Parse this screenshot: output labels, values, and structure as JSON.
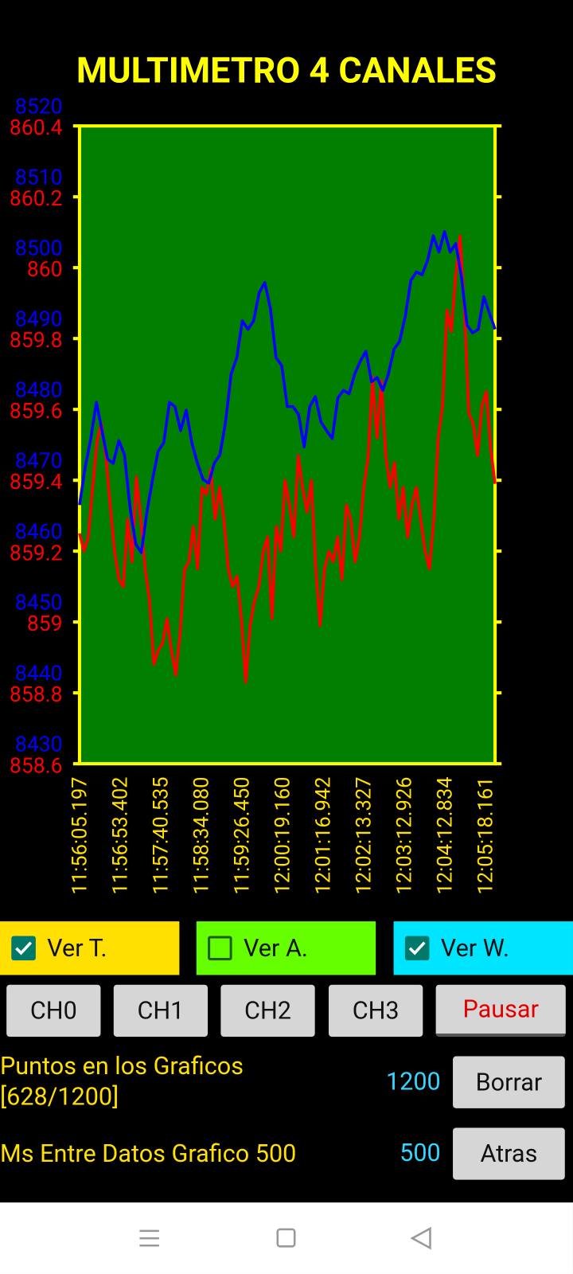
{
  "header": {
    "title": "MULTIMETRO 4 CANALES"
  },
  "chart_data": {
    "type": "line",
    "x_tick_labels": [
      "11:56:05.197",
      "11:56:53.402",
      "11:57:40.535",
      "11:58:34.080",
      "11:59:26.450",
      "12:00:19.160",
      "12:01:16.942",
      "12:02:13.327",
      "12:03:12.926",
      "12:04:12.834",
      "12:05:18.161"
    ],
    "ylim": [
      8430,
      8520
    ],
    "yticks": [
      8430,
      8440,
      8450,
      8460,
      8470,
      8480,
      8490,
      8500,
      8510,
      8520
    ],
    "y2lim": [
      858.6,
      860.4
    ],
    "y2ticks": [
      858.6,
      858.8,
      859,
      859.2,
      859.4,
      859.6,
      859.8,
      860,
      860.2,
      860.4
    ],
    "background": "#007f00",
    "border_color": "#ffff00",
    "series": [
      {
        "color": "#0000ff",
        "values": [
          8466.5,
          8471.8,
          8475.9,
          8481.0,
          8477.0,
          8473.0,
          8472.4,
          8475.6,
          8473.6,
          8466.1,
          8461.0,
          8459.8,
          8465.5,
          8470.1,
          8474.1,
          8475.3,
          8481.0,
          8480.4,
          8477.0,
          8479.9,
          8475.3,
          8472.4,
          8470.1,
          8469.6,
          8472.4,
          8473.6,
          8478.2,
          8485.0,
          8487.3,
          8492.5,
          8491.3,
          8492.5,
          8496.5,
          8497.9,
          8494.2,
          8487.3,
          8486.2,
          8480.4,
          8480.4,
          8479.3,
          8474.7,
          8480.4,
          8481.8,
          8478.2,
          8477.0,
          8475.9,
          8481.6,
          8482.7,
          8482.2,
          8485.0,
          8486.8,
          8488.2,
          8483.9,
          8484.5,
          8482.7,
          8485.0,
          8488.5,
          8489.6,
          8493.1,
          8498.2,
          8499.4,
          8499.0,
          8501.1,
          8504.5,
          8502.2,
          8505.1,
          8502.2,
          8503.4,
          8498.8,
          8491.9,
          8490.8,
          8491.3,
          8495.9,
          8493.6,
          8491.3
        ]
      },
      {
        "color": "#ff0000",
        "axis": "y2",
        "values": [
          859.25,
          859.2,
          859.24,
          859.38,
          859.51,
          859.56,
          859.47,
          859.33,
          859.2,
          859.12,
          859.1,
          859.29,
          859.17,
          859.41,
          859.29,
          859.15,
          859.06,
          858.88,
          858.92,
          858.94,
          859.01,
          858.92,
          858.85,
          858.97,
          859.15,
          859.17,
          859.27,
          859.15,
          859.38,
          859.36,
          859.43,
          859.29,
          859.38,
          859.29,
          859.15,
          859.1,
          859.13,
          859.01,
          858.83,
          858.99,
          859.06,
          859.1,
          859.2,
          859.24,
          859.01,
          859.27,
          859.2,
          859.4,
          859.33,
          859.24,
          859.47,
          859.38,
          859.31,
          859.4,
          859.15,
          858.99,
          859.15,
          859.2,
          859.17,
          859.24,
          859.12,
          859.33,
          859.29,
          859.17,
          859.24,
          859.38,
          859.47,
          859.69,
          859.52,
          859.68,
          859.47,
          859.38,
          859.45,
          859.29,
          859.38,
          859.24,
          859.33,
          859.38,
          859.29,
          859.2,
          859.15,
          859.29,
          859.52,
          859.61,
          859.88,
          859.82,
          859.98,
          860.09,
          859.88,
          859.59,
          859.56,
          859.47,
          859.61,
          859.65,
          859.49,
          859.39
        ]
      }
    ]
  },
  "controls": {
    "checkboxes": [
      {
        "label": "Ver T.",
        "checked": true,
        "color": "#ffe000"
      },
      {
        "label": "Ver A.",
        "checked": false,
        "color": "#66ff00"
      },
      {
        "label": "Ver W.",
        "checked": true,
        "color": "#00e5ff"
      }
    ],
    "buttons": [
      "CH0",
      "CH1",
      "CH2",
      "CH3",
      "Pausar"
    ],
    "points": {
      "label": [
        "Puntos en los Graficos",
        "[628/1200]"
      ],
      "value": 1200,
      "button": "Borrar"
    },
    "interval": {
      "label": "Ms Entre Datos Grafico 500",
      "value": 500,
      "button": "Atras"
    }
  }
}
